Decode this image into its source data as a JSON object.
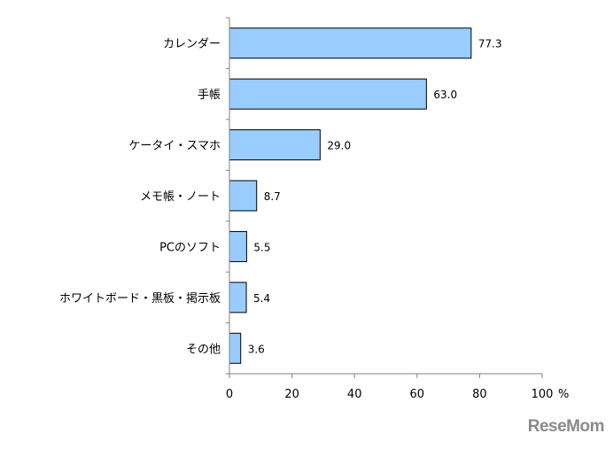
{
  "chart_data": {
    "type": "bar",
    "orientation": "horizontal",
    "categories": [
      "カレンダー",
      "手帳",
      "ケータイ・スマホ",
      "メモ帳・ノート",
      "PCのソフト",
      "ホワイトボード・黒板・掲示板",
      "その他"
    ],
    "values": [
      77.3,
      63.0,
      29.0,
      8.7,
      5.5,
      5.4,
      3.6
    ],
    "value_labels": [
      "77.3",
      "63.0",
      "29.0",
      "8.7",
      "5.5",
      "5.4",
      "3.6"
    ],
    "xlim": [
      0,
      100
    ],
    "xticks": [
      0,
      20,
      40,
      60,
      80,
      100
    ],
    "x_unit": "%",
    "grid": false,
    "bar_color": "#99ccff",
    "bar_edge_color": "#000000"
  },
  "watermark": "ReseMom"
}
